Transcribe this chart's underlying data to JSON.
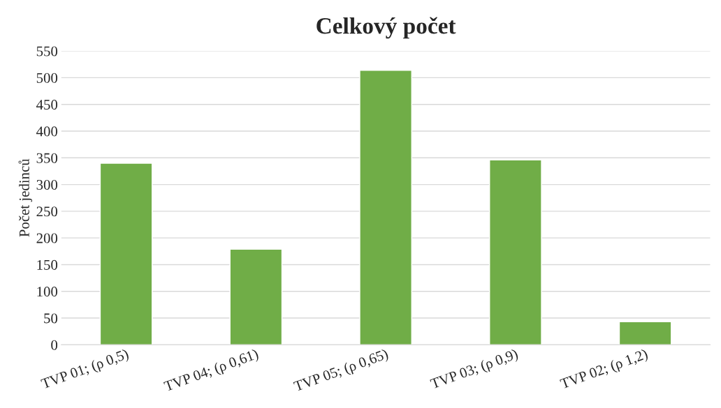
{
  "chart_data": {
    "type": "bar",
    "title": "Celkový počet",
    "ylabel": "Počet jedinců",
    "categories": [
      "TVP 01; (ρ 0,5)",
      "TVP 04; (ρ 0,61)",
      "TVP 05; (ρ 0,65)",
      "TVP 03; (ρ 0,9)",
      "TVP 02; (ρ 1,2)"
    ],
    "values": [
      340,
      179,
      514,
      346,
      43
    ],
    "color": "#70ad47",
    "ylim": [
      0,
      550
    ],
    "yticks": [
      0,
      50,
      100,
      150,
      200,
      250,
      300,
      350,
      400,
      450,
      500,
      550
    ],
    "grid": "y",
    "legend": false
  }
}
